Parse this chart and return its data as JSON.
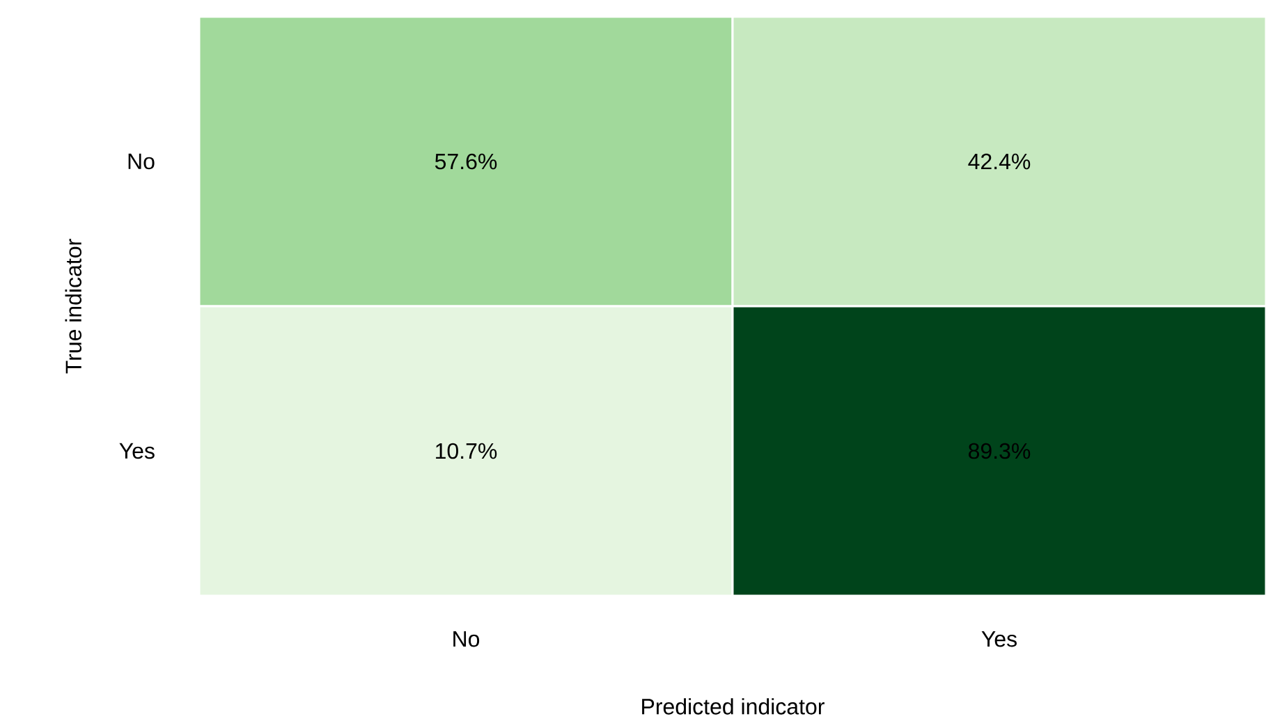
{
  "chart_data": {
    "type": "heatmap",
    "xlabel": "Predicted indicator",
    "ylabel": "True indicator",
    "categories": [
      "No",
      "Yes"
    ],
    "y_categories": [
      "No",
      "Yes"
    ],
    "cells": [
      [
        57.6,
        42.4
      ],
      [
        10.7,
        89.3
      ]
    ],
    "cell_labels": [
      [
        "57.6%",
        "42.4%"
      ],
      [
        "10.7%",
        "89.3%"
      ]
    ]
  }
}
